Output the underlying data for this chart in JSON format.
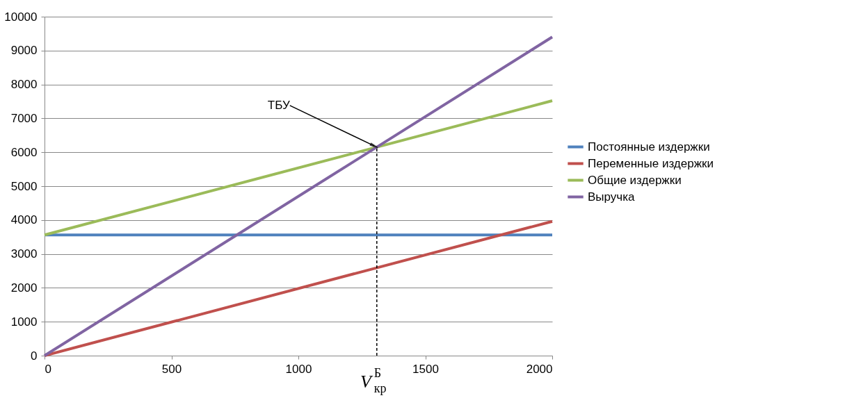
{
  "chart_data": {
    "type": "line",
    "x": [
      0,
      2000
    ],
    "series": [
      {
        "name": "Постоянные издержки",
        "color": "#4f81bd",
        "values": [
          3560,
          3560
        ]
      },
      {
        "name": "Переменные издержки",
        "color": "#c0504d",
        "values": [
          0,
          3960
        ]
      },
      {
        "name": "Общие издержки",
        "color": "#9bbb59",
        "values": [
          3560,
          7520
        ]
      },
      {
        "name": "Выручка",
        "color": "#8064a2",
        "values": [
          0,
          9400
        ]
      }
    ],
    "xlim": [
      0,
      2000
    ],
    "xticks": [
      0,
      500,
      1000,
      1500,
      2000
    ],
    "ylim": [
      0,
      10000
    ],
    "yticks": [
      0,
      1000,
      2000,
      3000,
      4000,
      5000,
      6000,
      7000,
      8000,
      9000,
      10000
    ],
    "grid": "y",
    "legend": "right",
    "marker": "none",
    "line_style": "solid",
    "annotations": [
      {
        "text": "ТБУ",
        "x": 1309,
        "y": 6150
      }
    ],
    "ref_lines": [
      {
        "axis": "x",
        "value": 1309,
        "label": "V$^{Б}$$_{кр}$",
        "color": "#000000",
        "line_style": "dashed"
      }
    ]
  }
}
